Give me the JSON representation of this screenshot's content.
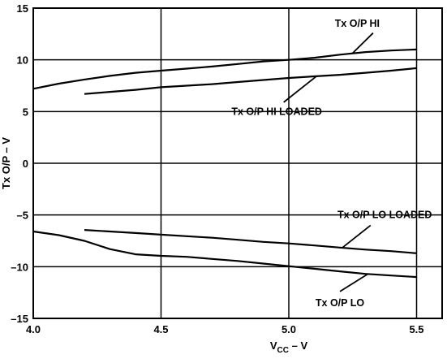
{
  "chart_data": {
    "type": "line",
    "title": "",
    "xlabel": "V",
    "xlabel_sub": "CC",
    "xlabel_suffix": " – V",
    "ylabel": "Tx O/P – V",
    "xlim": [
      4.0,
      5.6
    ],
    "ylim": [
      -15,
      15
    ],
    "xticks": [
      "4.0",
      "4.5",
      "5.0",
      "5.5"
    ],
    "yticks": [
      "15",
      "10",
      "5",
      "0",
      "–5",
      "–10",
      "–15"
    ],
    "grid": true,
    "series": [
      {
        "name": "Tx O/P HI",
        "x": [
          4.0,
          4.1,
          4.2,
          4.3,
          4.4,
          4.5,
          4.6,
          4.7,
          4.8,
          4.9,
          5.0,
          5.1,
          5.2,
          5.3,
          5.4,
          5.5
        ],
        "y": [
          7.2,
          7.7,
          8.1,
          8.45,
          8.75,
          8.95,
          9.15,
          9.35,
          9.6,
          9.85,
          10.0,
          10.2,
          10.5,
          10.75,
          10.9,
          11.0
        ]
      },
      {
        "name": "Tx O/P HI LOADED",
        "x": [
          4.2,
          4.3,
          4.4,
          4.5,
          4.6,
          4.7,
          4.8,
          4.9,
          5.0,
          5.1,
          5.2,
          5.3,
          5.4,
          5.5
        ],
        "y": [
          6.7,
          6.9,
          7.1,
          7.35,
          7.5,
          7.65,
          7.85,
          8.05,
          8.25,
          8.4,
          8.55,
          8.75,
          8.95,
          9.2
        ]
      },
      {
        "name": "Tx O/P LO LOADED",
        "x": [
          4.2,
          4.3,
          4.4,
          4.5,
          4.6,
          4.7,
          4.8,
          4.9,
          5.0,
          5.1,
          5.2,
          5.3,
          5.4,
          5.5
        ],
        "y": [
          -6.45,
          -6.6,
          -6.75,
          -6.9,
          -7.05,
          -7.2,
          -7.4,
          -7.6,
          -7.75,
          -7.95,
          -8.15,
          -8.35,
          -8.5,
          -8.7
        ]
      },
      {
        "name": "Tx O/P LO",
        "x": [
          4.0,
          4.1,
          4.2,
          4.3,
          4.4,
          4.5,
          4.6,
          4.7,
          4.8,
          4.9,
          5.0,
          5.1,
          5.2,
          5.3,
          5.4,
          5.5
        ],
        "y": [
          -6.6,
          -6.95,
          -7.5,
          -8.3,
          -8.8,
          -8.95,
          -9.05,
          -9.25,
          -9.45,
          -9.7,
          -9.95,
          -10.2,
          -10.45,
          -10.7,
          -10.85,
          -11.0
        ]
      }
    ]
  }
}
